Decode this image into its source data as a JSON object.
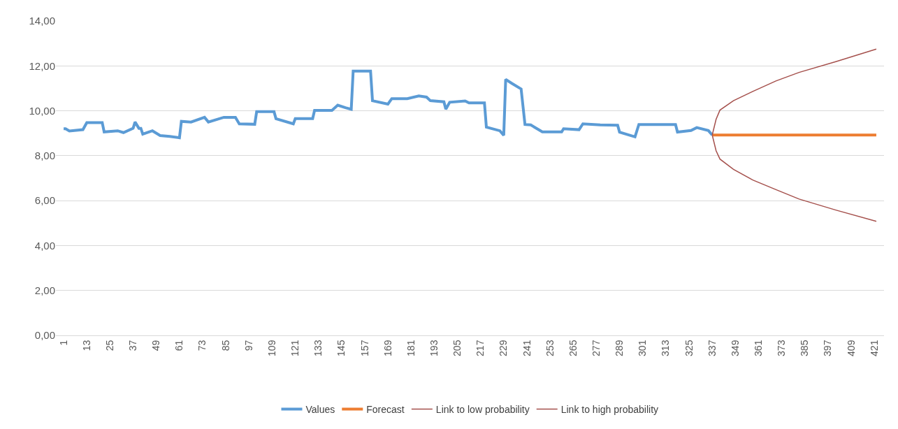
{
  "chart_data": {
    "type": "line",
    "xlim": [
      -3,
      426
    ],
    "xticks": [
      1,
      13,
      25,
      37,
      49,
      61,
      73,
      85,
      97,
      109,
      121,
      133,
      145,
      157,
      169,
      181,
      193,
      205,
      217,
      229,
      241,
      253,
      265,
      277,
      289,
      301,
      313,
      325,
      337,
      349,
      361,
      373,
      385,
      397,
      409,
      421
    ],
    "ylim": [
      0,
      14
    ],
    "yticks": [
      {
        "value": 0,
        "label": "0,00"
      },
      {
        "value": 2,
        "label": "2,00"
      },
      {
        "value": 4,
        "label": "4,00"
      },
      {
        "value": 6,
        "label": "6,00"
      },
      {
        "value": 8,
        "label": "8,00"
      },
      {
        "value": 10,
        "label": "10,00"
      },
      {
        "value": 12,
        "label": "12,00"
      },
      {
        "value": 14,
        "label": "14,00"
      }
    ],
    "grid": "y",
    "legend": "bottom",
    "series": [
      {
        "name": "Values",
        "color": "#5b9bd5",
        "x": [
          1,
          2,
          4,
          11,
          13,
          21,
          22,
          29,
          32,
          37,
          38,
          40,
          41,
          42,
          47,
          51,
          56,
          61,
          62,
          67,
          74,
          76,
          84,
          90,
          92,
          100,
          101,
          110,
          111,
          120,
          121,
          130,
          131,
          140,
          143,
          147,
          150,
          151,
          160,
          161,
          169,
          171,
          179,
          185,
          189,
          191,
          198,
          199,
          201,
          209,
          211,
          219,
          220,
          227,
          229,
          230,
          233,
          238,
          240,
          243,
          249,
          259,
          260,
          268,
          270,
          279,
          288,
          289,
          297,
          299,
          318,
          319,
          326,
          329,
          335,
          337
        ],
        "values": [
          9.2,
          9.2,
          9.1,
          9.16,
          9.47,
          9.47,
          9.06,
          9.11,
          9.03,
          9.22,
          9.5,
          9.22,
          9.22,
          8.96,
          9.11,
          8.9,
          8.86,
          8.8,
          9.53,
          9.5,
          9.71,
          9.5,
          9.71,
          9.71,
          9.42,
          9.4,
          9.96,
          9.96,
          9.65,
          9.42,
          9.65,
          9.65,
          10.02,
          10.02,
          10.25,
          10.14,
          10.07,
          11.77,
          11.77,
          10.45,
          10.3,
          10.54,
          10.54,
          10.66,
          10.61,
          10.45,
          10.4,
          10.07,
          10.38,
          10.44,
          10.35,
          10.35,
          9.27,
          9.11,
          8.91,
          11.4,
          11.23,
          10.97,
          9.39,
          9.37,
          9.06,
          9.06,
          9.2,
          9.16,
          9.42,
          9.37,
          9.36,
          9.05,
          8.84,
          9.39,
          9.39,
          9.05,
          9.12,
          9.25,
          9.12,
          8.92
        ]
      },
      {
        "name": "Forecast",
        "color": "#ed7d31",
        "x": [
          337,
          422
        ],
        "values": [
          8.92,
          8.92
        ]
      },
      {
        "name": "Link to low probability",
        "color": "#a5504c",
        "x": [
          337,
          339,
          341,
          348,
          358,
          370,
          382,
          401,
          422
        ],
        "values": [
          8.92,
          8.22,
          7.85,
          7.39,
          6.92,
          6.49,
          6.07,
          5.58,
          5.08
        ]
      },
      {
        "name": "Link to high probability",
        "color": "#a5504c",
        "x": [
          337,
          339,
          341,
          348,
          358,
          370,
          382,
          401,
          422
        ],
        "values": [
          8.92,
          9.62,
          10.03,
          10.45,
          10.86,
          11.33,
          11.71,
          12.19,
          12.75
        ]
      }
    ]
  }
}
